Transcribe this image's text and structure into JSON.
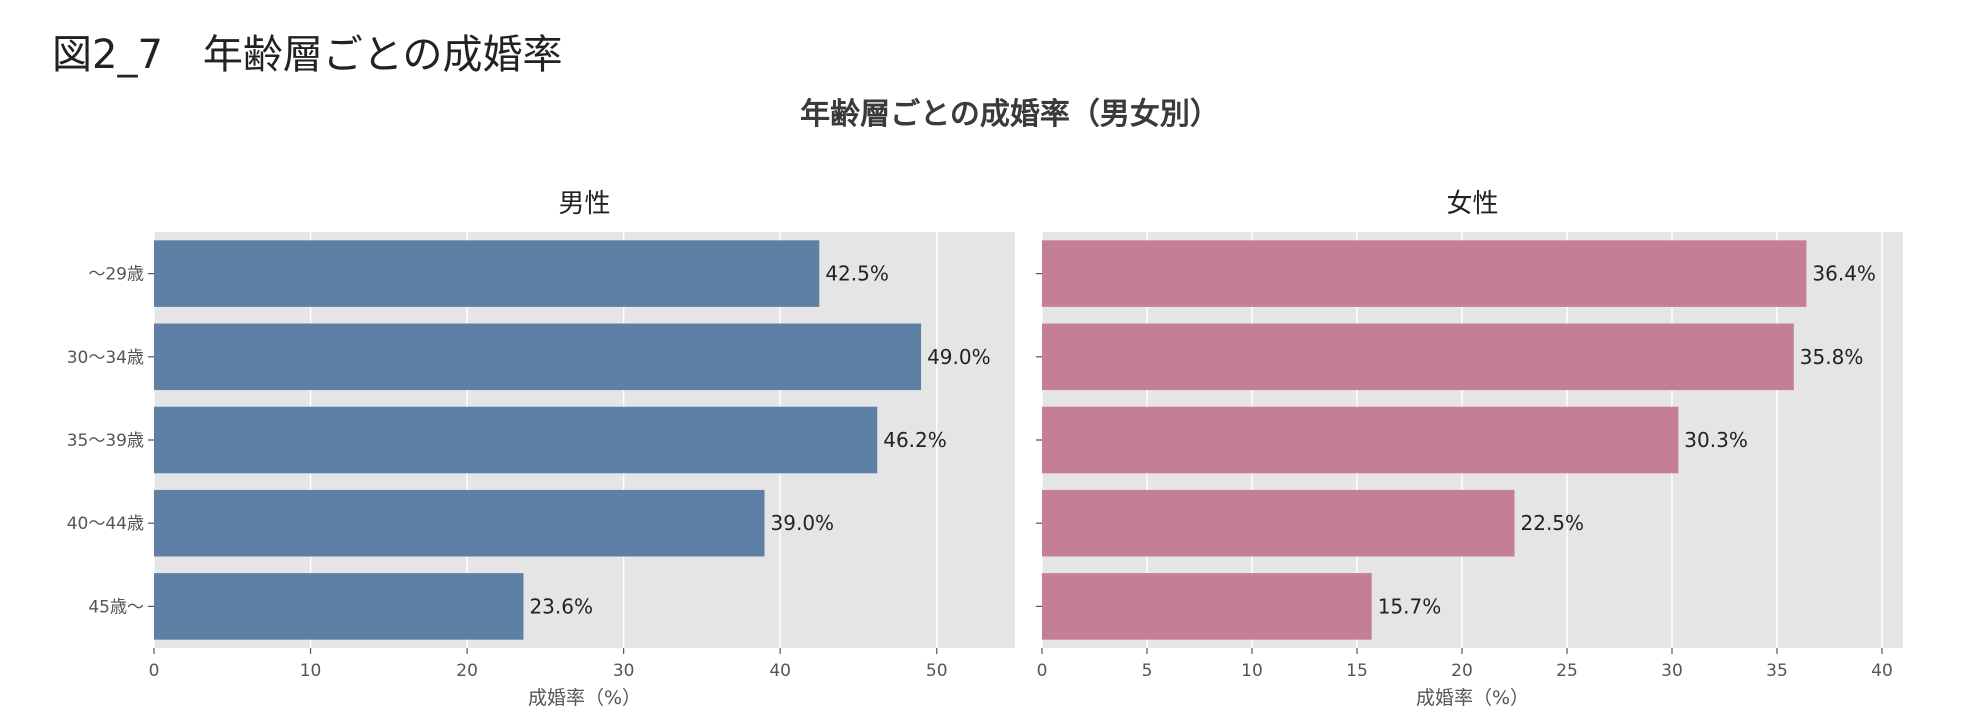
{
  "figure_label": "図2_7　年齢層ごとの成婚率",
  "colors": {
    "male": "#5e80a4",
    "female": "#c47f95",
    "panel_bg": "#e5e5e5",
    "grid": "#ffffff"
  },
  "chart_data": {
    "type": "bar",
    "orientation": "horizontal",
    "title": "年齢層ごとの成婚率（男女別）",
    "categories": [
      "～29歳",
      "30～34歳",
      "35～39歳",
      "40～44歳",
      "45歳～"
    ],
    "panels": [
      {
        "name": "男性",
        "xlabel": "成婚率（%）",
        "xlim": [
          0,
          55
        ],
        "xticks": [
          0,
          10,
          20,
          30,
          40,
          50
        ],
        "values": [
          42.5,
          49.0,
          46.2,
          39.0,
          23.6
        ],
        "labels": [
          "42.5%",
          "49.0%",
          "46.2%",
          "39.0%",
          "23.6%"
        ],
        "show_category_labels": true,
        "grid": true
      },
      {
        "name": "女性",
        "xlabel": "成婚率（%）",
        "xlim": [
          0,
          41
        ],
        "xticks": [
          0,
          5,
          10,
          15,
          20,
          25,
          30,
          35,
          40
        ],
        "values": [
          36.4,
          35.8,
          30.3,
          22.5,
          15.7
        ],
        "labels": [
          "36.4%",
          "35.8%",
          "30.3%",
          "22.5%",
          "15.7%"
        ],
        "show_category_labels": false,
        "grid": true
      }
    ]
  }
}
